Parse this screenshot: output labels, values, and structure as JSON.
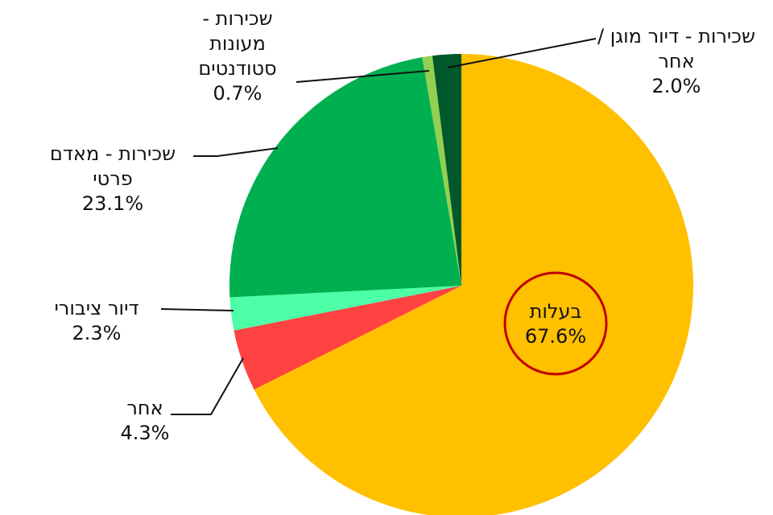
{
  "chart_data": {
    "type": "pie",
    "categories": [
      "בעלות",
      "אחר",
      "דיור ציבורי",
      "שכירות - מאדם פרטי",
      "שכירות - מעונות סטודנטים",
      "שכירות - דיור מוגן / אחר"
    ],
    "values": [
      67.6,
      4.3,
      2.3,
      23.1,
      0.7,
      2.0
    ],
    "value_labels": [
      "67.6%",
      "4.3%",
      "2.3%",
      "23.1%",
      "0.7%",
      "2.0%"
    ],
    "colors": [
      "#FFC000",
      "#FF4343",
      "#4DFFA6",
      "#00B050",
      "#92D050",
      "#00582A"
    ]
  }
}
